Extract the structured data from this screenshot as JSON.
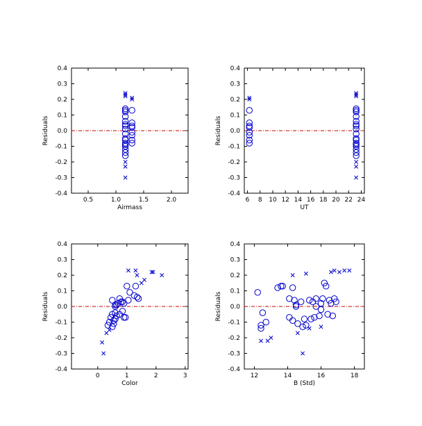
{
  "colors": {
    "marker": "#0000cc",
    "zero_line": "#cc0000",
    "axis": "#000000"
  },
  "chart_data": [
    {
      "type": "scatter",
      "xlabel": "Airmass",
      "ylabel": "Residuals",
      "xlim": [
        0.2,
        2.3
      ],
      "ylim": [
        -0.4,
        0.4
      ],
      "xticks": [
        0.5,
        1.0,
        1.5,
        2.0
      ],
      "xtick_labels": [
        "0.5",
        "1.0",
        "1.5",
        "2.0"
      ],
      "yticks": [
        -0.4,
        -0.3,
        -0.2,
        -0.1,
        0.0,
        0.1,
        0.2,
        0.3,
        0.4
      ],
      "ytick_labels": [
        "-0.4",
        "-0.3",
        "-0.2",
        "-0.1",
        "0.0",
        "0.1",
        "0.2",
        "0.3",
        "0.4"
      ],
      "zero_line": 0,
      "series": [
        {
          "marker": "circle",
          "x": [
            1.17,
            1.17,
            1.17,
            1.17,
            1.17,
            1.17,
            1.17,
            1.17,
            1.17,
            1.17,
            1.17,
            1.17,
            1.17,
            1.17,
            1.17,
            1.17,
            1.17,
            1.29,
            1.29,
            1.29,
            1.29,
            1.29,
            1.29,
            1.29,
            1.29
          ],
          "y": [
            0.14,
            0.13,
            0.12,
            0.09,
            0.06,
            0.04,
            0.03,
            0.01,
            -0.02,
            -0.05,
            -0.06,
            -0.08,
            -0.09,
            -0.1,
            -0.12,
            -0.14,
            -0.16,
            0.13,
            0.05,
            0.03,
            0.02,
            -0.01,
            -0.03,
            -0.06,
            -0.08
          ]
        },
        {
          "marker": "x",
          "x": [
            1.17,
            1.17,
            1.17,
            1.17,
            1.17,
            1.17,
            1.29,
            1.29
          ],
          "y": [
            0.24,
            0.23,
            0.22,
            -0.2,
            -0.23,
            -0.3,
            0.21,
            0.2
          ]
        }
      ]
    },
    {
      "type": "scatter",
      "xlabel": "UT",
      "ylabel": "Residuals",
      "xlim": [
        5.5,
        24.5
      ],
      "ylim": [
        -0.4,
        0.4
      ],
      "xticks": [
        6,
        8,
        10,
        12,
        14,
        16,
        18,
        20,
        22,
        24
      ],
      "xtick_labels": [
        "6",
        "8",
        "10",
        "12",
        "14",
        "16",
        "18",
        "20",
        "22",
        "24"
      ],
      "yticks": [
        -0.4,
        -0.3,
        -0.2,
        -0.1,
        0.0,
        0.1,
        0.2,
        0.3,
        0.4
      ],
      "ytick_labels": [
        "-0.4",
        "-0.3",
        "-0.2",
        "-0.1",
        "0.0",
        "0.1",
        "0.2",
        "0.3",
        "0.4"
      ],
      "zero_line": 0,
      "series": [
        {
          "marker": "circle",
          "x": [
            6.3,
            6.3,
            6.3,
            6.3,
            6.3,
            6.3,
            6.3,
            6.3,
            23.2,
            23.2,
            23.2,
            23.2,
            23.2,
            23.2,
            23.2,
            23.2,
            23.2,
            23.2,
            23.2,
            23.2,
            23.2,
            23.2,
            23.2,
            23.2,
            23.2
          ],
          "y": [
            0.13,
            0.05,
            0.03,
            0.02,
            -0.01,
            -0.03,
            -0.06,
            -0.08,
            0.14,
            0.13,
            0.12,
            0.09,
            0.06,
            0.04,
            0.03,
            0.01,
            -0.02,
            -0.05,
            -0.06,
            -0.08,
            -0.09,
            -0.1,
            -0.12,
            -0.14,
            -0.16
          ]
        },
        {
          "marker": "x",
          "x": [
            6.3,
            6.3,
            23.2,
            23.2,
            23.2,
            23.2,
            23.2,
            23.2
          ],
          "y": [
            0.21,
            0.2,
            0.24,
            0.23,
            0.22,
            -0.2,
            -0.23,
            -0.3
          ]
        }
      ]
    },
    {
      "type": "scatter",
      "xlabel": "Color",
      "ylabel": "Residuals",
      "xlim": [
        -0.9,
        3.1
      ],
      "ylim": [
        -0.4,
        0.4
      ],
      "xticks": [
        0,
        1,
        2,
        3
      ],
      "xtick_labels": [
        "0",
        "1",
        "2",
        "3"
      ],
      "yticks": [
        -0.4,
        -0.3,
        -0.2,
        -0.1,
        0.0,
        0.1,
        0.2,
        0.3,
        0.4
      ],
      "ytick_labels": [
        "-0.4",
        "-0.3",
        "-0.2",
        "-0.1",
        "0.0",
        "0.1",
        "0.2",
        "0.3",
        "0.4"
      ],
      "zero_line": 0,
      "series": [
        {
          "marker": "circle",
          "x": [
            0.35,
            0.4,
            0.45,
            0.5,
            0.5,
            0.55,
            0.6,
            0.6,
            0.65,
            0.5,
            0.55,
            0.6,
            0.65,
            0.7,
            0.75,
            0.8,
            0.85,
            0.9,
            0.95,
            1.0,
            1.1,
            1.05,
            1.3,
            1.35,
            1.4,
            1.25,
            0.75,
            0.85,
            0.6,
            0.9
          ],
          "y": [
            -0.12,
            -0.1,
            -0.07,
            -0.05,
            0.04,
            -0.09,
            -0.08,
            -0.04,
            -0.06,
            -0.13,
            -0.11,
            0.0,
            0.01,
            0.02,
            0.05,
            0.03,
            0.03,
            0.02,
            -0.07,
            0.13,
            0.09,
            0.04,
            0.13,
            0.06,
            0.05,
            0.07,
            -0.05,
            -0.03,
            0.01,
            -0.07
          ]
        },
        {
          "marker": "x",
          "x": [
            0.15,
            0.2,
            0.3,
            0.4,
            1.05,
            1.3,
            1.5,
            1.6,
            1.9,
            2.2,
            1.35,
            1.85
          ],
          "y": [
            -0.23,
            -0.3,
            -0.17,
            -0.15,
            0.23,
            0.23,
            0.15,
            0.17,
            0.22,
            0.2,
            0.2,
            0.22
          ]
        }
      ]
    },
    {
      "type": "scatter",
      "xlabel": "B (Std)",
      "ylabel": "Residuals",
      "xlim": [
        11.4,
        18.6
      ],
      "ylim": [
        -0.4,
        0.4
      ],
      "xticks": [
        12,
        14,
        16,
        18
      ],
      "xtick_labels": [
        "12",
        "14",
        "16",
        "18"
      ],
      "yticks": [
        -0.4,
        -0.3,
        -0.2,
        -0.1,
        0.0,
        0.1,
        0.2,
        0.3,
        0.4
      ],
      "ytick_labels": [
        "-0.4",
        "-0.3",
        "-0.2",
        "-0.1",
        "0.0",
        "0.1",
        "0.2",
        "0.3",
        "0.4"
      ],
      "zero_line": 0,
      "series": [
        {
          "marker": "circle",
          "x": [
            12.2,
            12.4,
            12.5,
            12.7,
            13.4,
            13.6,
            13.7,
            14.1,
            14.1,
            14.3,
            14.4,
            14.5,
            14.6,
            14.8,
            14.9,
            15.0,
            15.1,
            15.3,
            15.4,
            15.5,
            15.6,
            15.7,
            15.9,
            16.0,
            16.1,
            16.2,
            16.3,
            16.4,
            16.5,
            16.6,
            16.7,
            16.8,
            16.9,
            14.3,
            12.4,
            15.7,
            16.0,
            14.5
          ],
          "y": [
            0.09,
            -0.12,
            -0.04,
            -0.1,
            0.12,
            0.13,
            0.13,
            0.05,
            -0.07,
            0.12,
            0.04,
            0.0,
            -0.11,
            0.03,
            -0.13,
            -0.08,
            -0.12,
            0.04,
            -0.08,
            0.03,
            -0.07,
            0.0,
            -0.06,
            0.02,
            0.05,
            0.15,
            0.13,
            -0.05,
            0.04,
            0.02,
            -0.06,
            0.05,
            0.03,
            -0.09,
            -0.14,
            0.05,
            -0.02,
            0.01
          ]
        },
        {
          "marker": "x",
          "x": [
            12.4,
            12.8,
            13.0,
            14.3,
            14.6,
            14.9,
            15.1,
            15.3,
            16.0,
            16.6,
            16.8,
            17.1,
            17.4,
            17.7
          ],
          "y": [
            -0.22,
            -0.22,
            -0.2,
            0.2,
            -0.17,
            -0.3,
            0.21,
            -0.14,
            -0.13,
            0.22,
            0.23,
            0.22,
            0.23,
            0.23
          ]
        }
      ]
    }
  ]
}
